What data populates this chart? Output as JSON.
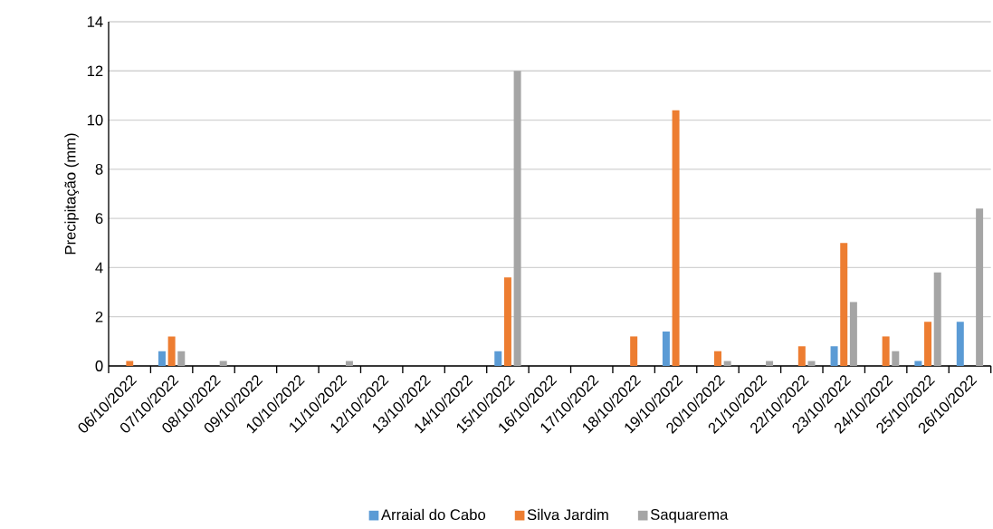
{
  "chart_data": {
    "type": "bar",
    "categories": [
      "06/10/2022",
      "07/10/2022",
      "08/10/2022",
      "09/10/2022",
      "10/10/2022",
      "11/10/2022",
      "12/10/2022",
      "13/10/2022",
      "14/10/2022",
      "15/10/2022",
      "16/10/2022",
      "17/10/2022",
      "18/10/2022",
      "19/10/2022",
      "20/10/2022",
      "21/10/2022",
      "22/10/2022",
      "23/10/2022",
      "24/10/2022",
      "25/10/2022",
      "26/10/2022"
    ],
    "series": [
      {
        "name": "Arraial do Cabo",
        "color": "#5b9bd5",
        "values": [
          0,
          0.6,
          0,
          0,
          0,
          0,
          0,
          0,
          0,
          0.6,
          0,
          0,
          0,
          1.4,
          0,
          0,
          0,
          0.8,
          0,
          0.2,
          1.8
        ]
      },
      {
        "name": "Silva Jardim",
        "color": "#ed7d31",
        "values": [
          0.2,
          1.2,
          0,
          0,
          0,
          0,
          0,
          0,
          0,
          3.6,
          0,
          0,
          1.2,
          10.4,
          0.6,
          0,
          0.8,
          5.0,
          1.2,
          1.8,
          0
        ]
      },
      {
        "name": "Saquarema",
        "color": "#a5a5a5",
        "values": [
          0,
          0.6,
          0.2,
          0,
          0,
          0.2,
          0,
          0,
          0,
          12,
          0,
          0,
          0,
          0,
          0.2,
          0.2,
          0.2,
          2.6,
          0.6,
          3.8,
          6.4
        ]
      }
    ],
    "ylabel": "Precipitação (mm)",
    "ylim": [
      0,
      14
    ],
    "yticks": [
      0,
      2,
      4,
      6,
      8,
      10,
      12,
      14
    ],
    "grid": "y",
    "legend": "bottom"
  }
}
